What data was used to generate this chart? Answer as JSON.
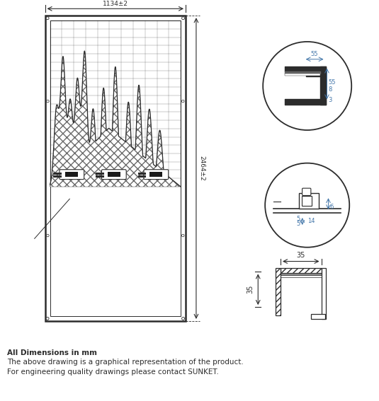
{
  "bg_color": "#ffffff",
  "line_color": "#2c2c2c",
  "dim_color": "#4477aa",
  "text_color": "#2c2c2c",
  "dim_top": "1134±2",
  "dim_right": "2464±2",
  "circle1_dims": [
    "55",
    "55",
    "8",
    "3"
  ],
  "circle2_dims": [
    "6",
    "5",
    "5",
    "14"
  ],
  "frame_dims": [
    "35",
    "35"
  ],
  "footer_lines": [
    "All Dimensions in mm",
    "The above drawing is a graphical representation of the product.",
    "For engineering quality drawings please contact SUNKET."
  ]
}
